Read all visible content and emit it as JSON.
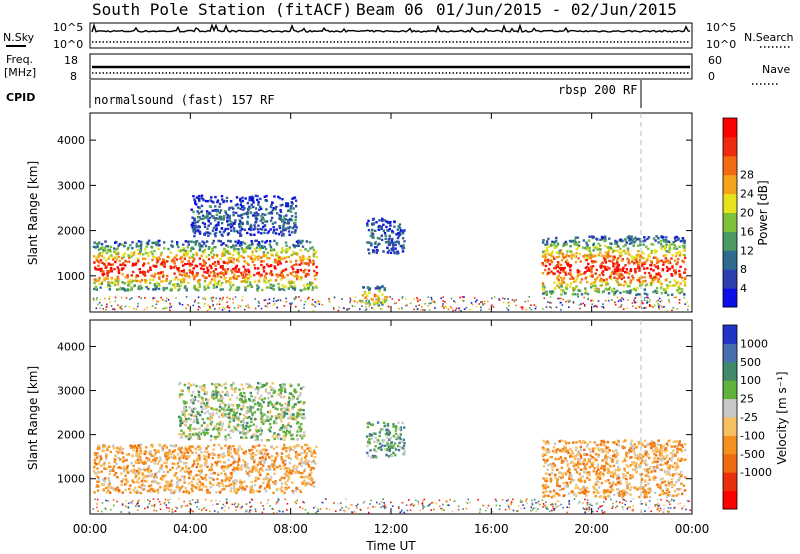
{
  "title": {
    "station": "South Pole Station (fitACF)",
    "beam": "Beam 06",
    "date_range": "01/Jun/2015 - 02/Jun/2015"
  },
  "top_panels": {
    "nsky_label": "N.Sky",
    "nsky_ticks": [
      "10^5",
      "10^0"
    ],
    "nsearch_label": "N.Search",
    "nsearch_ticks": [
      "10^5",
      "10^0"
    ],
    "freq_label_1": "Freq.",
    "freq_label_2": "[MHz]",
    "freq_ticks": [
      "18",
      "8"
    ],
    "nave_label": "Nave",
    "nave_ticks": [
      "60",
      "0"
    ],
    "cpid_label": "CPID",
    "cpid_segments": [
      {
        "label": "normalsound (fast) 157 RF"
      },
      {
        "label": "rbsp 200 RF"
      }
    ],
    "cpid_switch_time": "21:55"
  },
  "chart_data": [
    {
      "type": "heatmap",
      "name": "power-panel",
      "ylabel": "Slant Range [km]",
      "yticks": [
        "1000",
        "2000",
        "3000",
        "4000"
      ],
      "ylim": [
        200,
        4600
      ],
      "xlim_hours": [
        0,
        24
      ],
      "colorbar_label": "Power [dB]",
      "colorbar_ticks": [
        "4",
        "8",
        "12",
        "16",
        "20",
        "24",
        "28"
      ],
      "colorbar_range": [
        0,
        32
      ],
      "colors": [
        "#0a10e6",
        "#2a3fb0",
        "#2f6b8f",
        "#4a9a63",
        "#7fc23a",
        "#e6e21e",
        "#f4a21c",
        "#f36a12",
        "#ee2b10",
        "#ff0000"
      ],
      "echo_regions": [
        {
          "t_start": 0.1,
          "t_end": 9.0,
          "range_min": 700,
          "range_max": 1800,
          "value": "strong"
        },
        {
          "t_start": 4.0,
          "t_end": 8.2,
          "range_min": 1900,
          "range_max": 2800,
          "value": "weak"
        },
        {
          "t_start": 11.0,
          "t_end": 12.5,
          "range_min": 1500,
          "range_max": 2300,
          "value": "weak"
        },
        {
          "t_start": 10.7,
          "t_end": 11.8,
          "range_min": 350,
          "range_max": 800,
          "value": "moderate"
        },
        {
          "t_start": 18.0,
          "t_end": 23.7,
          "range_min": 600,
          "range_max": 1900,
          "value": "strong"
        }
      ]
    },
    {
      "type": "heatmap",
      "name": "velocity-panel",
      "ylabel": "Slant Range [km]",
      "yticks": [
        "1000",
        "2000",
        "3000",
        "4000"
      ],
      "ylim": [
        200,
        4600
      ],
      "xlim_hours": [
        0,
        24
      ],
      "xticks": [
        "00:00",
        "04:00",
        "08:00",
        "12:00",
        "16:00",
        "20:00",
        "00:00"
      ],
      "xlabel": "Time UT",
      "colorbar_label": "Velocity [m s⁻¹]",
      "colorbar_ticks": [
        "1000",
        "500",
        "100",
        "25",
        "-25",
        "-100",
        "-500",
        "-1000"
      ],
      "colors": [
        "#2234c8",
        "#4a6fb0",
        "#3f8a6a",
        "#5fb23a",
        "#c8c8c8",
        "#f7c060",
        "#f3901e",
        "#f06a12",
        "#e8300c",
        "#ff0000"
      ],
      "echo_regions": [
        {
          "t_start": 0.1,
          "t_end": 9.0,
          "range_min": 700,
          "range_max": 1800,
          "value": "-100"
        },
        {
          "t_start": 3.5,
          "t_end": 8.5,
          "range_min": 1900,
          "range_max": 3200,
          "value": "-25"
        },
        {
          "t_start": 11.0,
          "t_end": 12.5,
          "range_min": 1500,
          "range_max": 2300,
          "value": "100"
        },
        {
          "t_start": 18.0,
          "t_end": 23.7,
          "range_min": 600,
          "range_max": 1900,
          "value": "-100"
        }
      ]
    }
  ]
}
